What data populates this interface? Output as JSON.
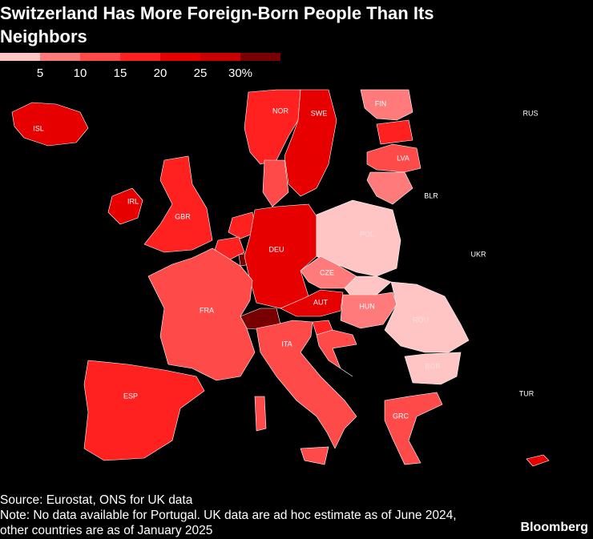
{
  "header": {
    "title": "Switzerland Has More Foreign-Born People Than Its Neighbors"
  },
  "legend": {
    "range": [
      0,
      35
    ],
    "colors": [
      "#ffc4c4",
      "#ff7a7a",
      "#ff4a4a",
      "#ff2020",
      "#e60000",
      "#c80000",
      "#780000"
    ],
    "ticks": [
      5,
      10,
      15,
      20,
      25,
      {
        "value": 30,
        "label": "30%"
      }
    ]
  },
  "countries": [
    {
      "label": "ISL",
      "value": 20
    },
    {
      "label": "NOR",
      "value": 18
    },
    {
      "label": "SWE",
      "value": 21
    },
    {
      "label": "FIN",
      "value": 9
    },
    {
      "label": "RUS",
      "value": null
    },
    {
      "label": null,
      "value": 16
    },
    {
      "label": "LVA",
      "value": 11
    },
    {
      "label": null,
      "value": 8
    },
    {
      "label": "BLR",
      "value": null
    },
    {
      "label": "IRL",
      "value": 22
    },
    {
      "label": "GBR",
      "value": 17
    },
    {
      "label": null,
      "value": 14
    },
    {
      "label": null,
      "value": 17
    },
    {
      "label": null,
      "value": 19
    },
    {
      "label": null,
      "value": 33
    },
    {
      "label": "DEU",
      "value": 21
    },
    {
      "label": "POL",
      "value": 4
    },
    {
      "label": "CZE",
      "value": 9
    },
    {
      "label": null,
      "value": 4
    },
    {
      "label": "AUT",
      "value": 22
    },
    {
      "label": null,
      "value": 31
    },
    {
      "label": "FRA",
      "value": 14
    },
    {
      "label": "ESP",
      "value": 19
    },
    {
      "label": "ITA",
      "value": 11
    },
    {
      "label": null,
      "value": 15
    },
    {
      "label": null,
      "value": 13
    },
    {
      "label": "HUN",
      "value": 7
    },
    {
      "label": "ROU",
      "value": 3
    },
    {
      "label": "UKR",
      "value": null
    },
    {
      "label": "BGR",
      "value": 3
    },
    {
      "label": "GRC",
      "value": 12
    },
    {
      "label": "TUR",
      "value": null
    },
    {
      "label": null,
      "value": 24
    }
  ],
  "footer": {
    "source": "Source: Eurostat, ONS for UK data",
    "note": "Note: No data available for Portugal. UK data are ad hoc estimate as of June 2024, other countries are as of January 2025",
    "brand": "Bloomberg"
  }
}
